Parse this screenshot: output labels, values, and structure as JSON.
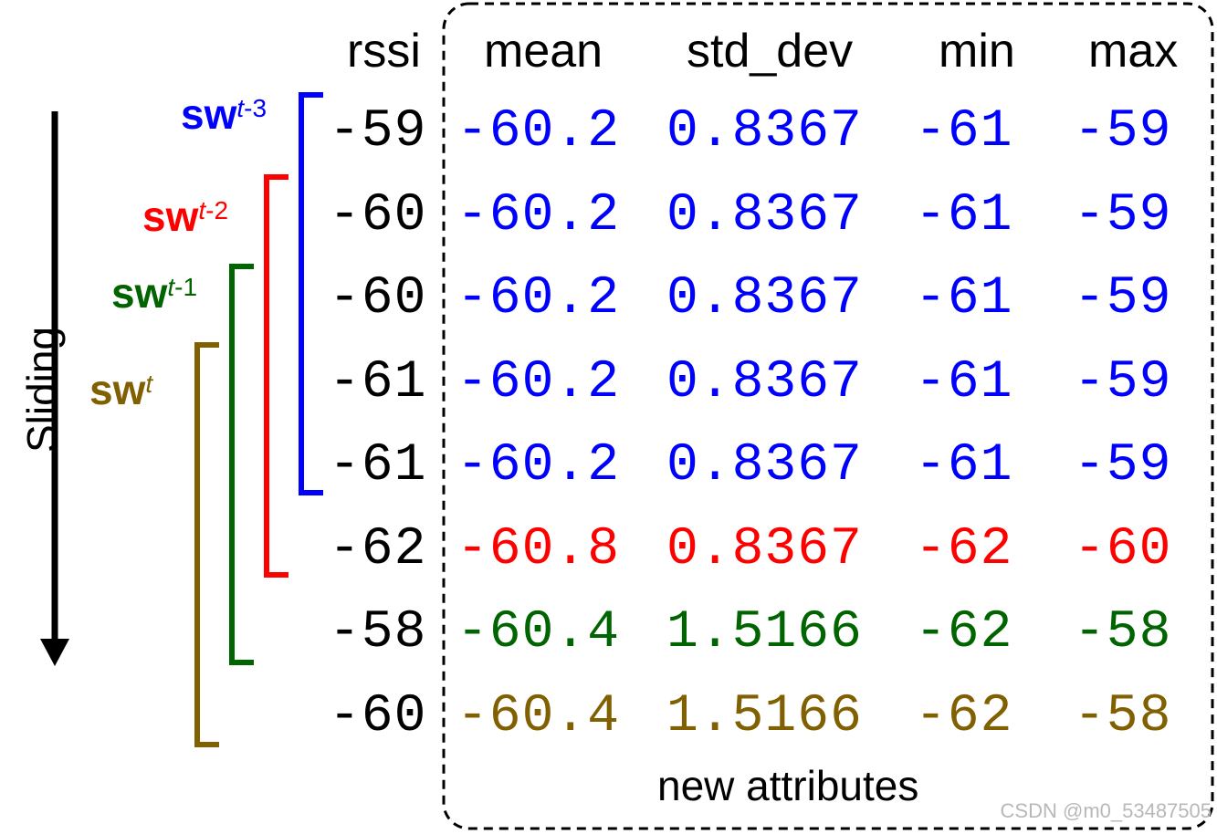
{
  "headers": {
    "rssi": "rssi",
    "mean": "mean",
    "std_dev": "std_dev",
    "min": "min",
    "max": "max"
  },
  "rows": [
    {
      "rssi": "-59",
      "mean": "-60.2",
      "std_dev": "0.8367",
      "min": "-61",
      "max": "-59",
      "color": "#0000ff"
    },
    {
      "rssi": "-60",
      "mean": "-60.2",
      "std_dev": "0.8367",
      "min": "-61",
      "max": "-59",
      "color": "#0000ff"
    },
    {
      "rssi": "-60",
      "mean": "-60.2",
      "std_dev": "0.8367",
      "min": "-61",
      "max": "-59",
      "color": "#0000ff"
    },
    {
      "rssi": "-61",
      "mean": "-60.2",
      "std_dev": "0.8367",
      "min": "-61",
      "max": "-59",
      "color": "#0000ff"
    },
    {
      "rssi": "-61",
      "mean": "-60.2",
      "std_dev": "0.8367",
      "min": "-61",
      "max": "-59",
      "color": "#0000ff"
    },
    {
      "rssi": "-62",
      "mean": "-60.8",
      "std_dev": "0.8367",
      "min": "-62",
      "max": "-60",
      "color": "#ff0000"
    },
    {
      "rssi": "-58",
      "mean": "-60.4",
      "std_dev": "1.5166",
      "min": "-62",
      "max": "-58",
      "color": "#006400"
    },
    {
      "rssi": "-60",
      "mean": "-60.4",
      "std_dev": "1.5166",
      "min": "-62",
      "max": "-58",
      "color": "#806000"
    }
  ],
  "windows": [
    {
      "base": "sw",
      "sup_var": "t",
      "sup_suffix": "-3",
      "color": "#0000ff",
      "start_row": 0,
      "end_row": 4
    },
    {
      "base": "sw",
      "sup_var": "t",
      "sup_suffix": "-2",
      "color": "#ff0000",
      "start_row": 1,
      "end_row": 5
    },
    {
      "base": "sw",
      "sup_var": "t",
      "sup_suffix": "-1",
      "color": "#006400",
      "start_row": 2,
      "end_row": 6
    },
    {
      "base": "sw",
      "sup_var": "t",
      "sup_suffix": "",
      "color": "#806000",
      "start_row": 3,
      "end_row": 7
    }
  ],
  "sliding_label": "Sliding",
  "new_attributes_label": "new attributes",
  "watermark": "CSDN @m0_53487505"
}
